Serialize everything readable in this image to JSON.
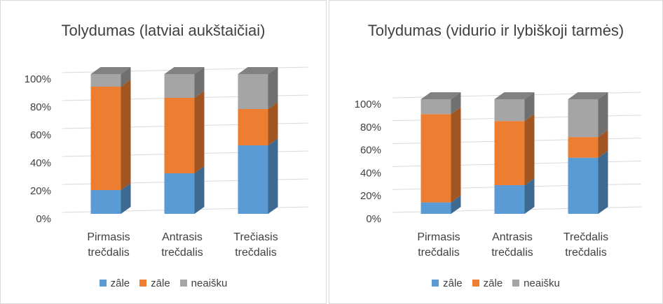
{
  "chart_data": [
    {
      "type": "bar",
      "stacked": true,
      "title": "Tolydumas (latviai aukštaičiai)",
      "categories": [
        "Pirmasis trečdalis",
        "Antrasis trečdalis",
        "Trečiasis trečdalis"
      ],
      "series": [
        {
          "name": "zâle",
          "color": "#5b9bd5",
          "values": [
            17,
            29,
            49
          ]
        },
        {
          "name": "zāle",
          "color": "#ed7d31",
          "values": [
            74,
            54,
            26
          ]
        },
        {
          "name": "neaišku",
          "color": "#a5a5a5",
          "values": [
            9,
            17,
            25
          ]
        }
      ],
      "ylim": [
        0,
        100
      ],
      "yticks": [
        {
          "value": 0,
          "label": "0%"
        },
        {
          "value": 20,
          "label": "20%"
        },
        {
          "value": 40,
          "label": "40%"
        },
        {
          "value": 60,
          "label": "60%"
        },
        {
          "value": 80,
          "label": "80%"
        },
        {
          "value": 100,
          "label": "100%"
        }
      ],
      "grid": true,
      "legend": "bottom"
    },
    {
      "type": "bar",
      "stacked": true,
      "title": "Tolydumas (vidurio ir lybiškoji tarmės)",
      "categories": [
        "Pirmasis trečdalis",
        "Antrasis trečdalis",
        "Trečdalis trečdalis"
      ],
      "series": [
        {
          "name": "zâle",
          "color": "#5b9bd5",
          "values": [
            10,
            25,
            49
          ]
        },
        {
          "name": "zāle",
          "color": "#ed7d31",
          "values": [
            77,
            56,
            18
          ]
        },
        {
          "name": "neaišku",
          "color": "#a5a5a5",
          "values": [
            13,
            19,
            33
          ]
        }
      ],
      "ylim": [
        0,
        100
      ],
      "yticks": [
        {
          "value": 0,
          "label": "0%"
        },
        {
          "value": 20,
          "label": "20%"
        },
        {
          "value": 40,
          "label": "40%"
        },
        {
          "value": 60,
          "label": "60%"
        },
        {
          "value": 80,
          "label": "80%"
        },
        {
          "value": 100,
          "label": "100%"
        }
      ],
      "grid": true,
      "legend": "bottom"
    }
  ]
}
